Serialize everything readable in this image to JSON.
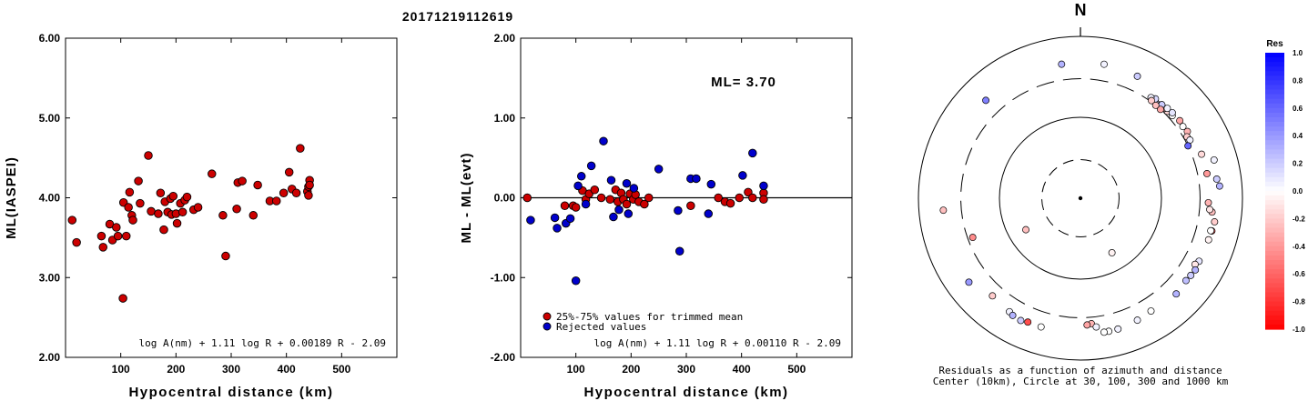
{
  "title": "20171219112619",
  "chart_data": [
    {
      "type": "scatter",
      "name": "ml-vs-distance",
      "xlabel": "Hypocentral distance (km)",
      "ylabel": "ML(IASPEI)",
      "xlim": [
        0,
        600
      ],
      "ylim": [
        2.0,
        6.0
      ],
      "xticks": [
        100,
        200,
        300,
        400,
        500
      ],
      "xtick_labels": [
        "100",
        "200",
        "300",
        "400",
        "500"
      ],
      "yticks": [
        2.0,
        3.0,
        4.0,
        5.0,
        6.0
      ],
      "ytick_labels": [
        "2.00",
        "3.00",
        "4.00",
        "5.00",
        "6.00"
      ],
      "formula": "log A(nm) + 1.11 log R + 0.00189 R - 2.09",
      "series": [
        {
          "color": "#cc0000",
          "points": [
            [
              12,
              3.72
            ],
            [
              20,
              3.44
            ],
            [
              65,
              3.52
            ],
            [
              68,
              3.38
            ],
            [
              80,
              3.67
            ],
            [
              85,
              3.47
            ],
            [
              92,
              3.63
            ],
            [
              95,
              3.52
            ],
            [
              104,
              2.74
            ],
            [
              105,
              3.94
            ],
            [
              110,
              3.52
            ],
            [
              114,
              3.88
            ],
            [
              116,
              4.07
            ],
            [
              120,
              3.78
            ],
            [
              122,
              3.72
            ],
            [
              132,
              4.21
            ],
            [
              135,
              3.93
            ],
            [
              150,
              4.53
            ],
            [
              155,
              3.83
            ],
            [
              168,
              3.8
            ],
            [
              172,
              4.06
            ],
            [
              178,
              3.6
            ],
            [
              180,
              3.95
            ],
            [
              185,
              3.82
            ],
            [
              190,
              3.99
            ],
            [
              192,
              3.79
            ],
            [
              195,
              4.02
            ],
            [
              200,
              3.8
            ],
            [
              202,
              3.68
            ],
            [
              208,
              3.93
            ],
            [
              212,
              3.82
            ],
            [
              216,
              3.97
            ],
            [
              220,
              4.01
            ],
            [
              232,
              3.85
            ],
            [
              240,
              3.88
            ],
            [
              265,
              4.3
            ],
            [
              285,
              3.78
            ],
            [
              290,
              3.27
            ],
            [
              310,
              3.86
            ],
            [
              312,
              4.19
            ],
            [
              320,
              4.21
            ],
            [
              340,
              3.78
            ],
            [
              348,
              4.16
            ],
            [
              370,
              3.96
            ],
            [
              382,
              3.96
            ],
            [
              395,
              4.06
            ],
            [
              405,
              4.32
            ],
            [
              410,
              4.11
            ],
            [
              418,
              4.06
            ],
            [
              425,
              4.62
            ],
            [
              438,
              4.08
            ],
            [
              440,
              4.14
            ],
            [
              440,
              4.03
            ],
            [
              442,
              4.22
            ],
            [
              442,
              4.16
            ]
          ]
        }
      ]
    },
    {
      "type": "scatter",
      "name": "residual-vs-distance",
      "xlabel": "Hypocentral distance (km)",
      "ylabel": "ML - ML(evt)",
      "xlim": [
        0,
        600
      ],
      "ylim": [
        -2.0,
        2.0
      ],
      "xticks": [
        100,
        200,
        300,
        400,
        500
      ],
      "xtick_labels": [
        "100",
        "200",
        "300",
        "400",
        "500"
      ],
      "yticks": [
        -2.0,
        -1.0,
        0.0,
        1.0,
        2.0
      ],
      "ytick_labels": [
        "-2.00",
        "-1.00",
        "0.00",
        "1.00",
        "2.00"
      ],
      "zero_line": 0,
      "annotation": "ML= 3.70",
      "formula": "log A(nm) + 1.11 log R + 0.00110 R - 2.09",
      "legend": [
        {
          "label": "25%-75% values for trimmed mean",
          "color": "#cc0000"
        },
        {
          "label": "Rejected values",
          "color": "#0000cc"
        }
      ],
      "series": [
        {
          "color": "#cc0000",
          "points": [
            [
              12,
              0.0
            ],
            [
              80,
              -0.1
            ],
            [
              95,
              -0.1
            ],
            [
              100,
              -0.12
            ],
            [
              112,
              0.09
            ],
            [
              118,
              -0.02
            ],
            [
              124,
              0.05
            ],
            [
              134,
              0.1
            ],
            [
              146,
              0.0
            ],
            [
              162,
              -0.02
            ],
            [
              172,
              0.1
            ],
            [
              176,
              -0.05
            ],
            [
              182,
              0.06
            ],
            [
              186,
              -0.02
            ],
            [
              192,
              -0.08
            ],
            [
              198,
              0.05
            ],
            [
              204,
              -0.02
            ],
            [
              208,
              0.04
            ],
            [
              214,
              -0.05
            ],
            [
              224,
              -0.08
            ],
            [
              232,
              0.0
            ],
            [
              308,
              -0.1
            ],
            [
              358,
              0.0
            ],
            [
              370,
              -0.05
            ],
            [
              380,
              -0.07
            ],
            [
              396,
              0.0
            ],
            [
              412,
              0.07
            ],
            [
              420,
              0.0
            ],
            [
              440,
              0.06
            ],
            [
              440,
              -0.02
            ]
          ]
        },
        {
          "color": "#0000cc",
          "points": [
            [
              18,
              -0.28
            ],
            [
              62,
              -0.25
            ],
            [
              66,
              -0.38
            ],
            [
              82,
              -0.32
            ],
            [
              90,
              -0.26
            ],
            [
              100,
              -1.04
            ],
            [
              104,
              0.15
            ],
            [
              110,
              0.27
            ],
            [
              118,
              -0.08
            ],
            [
              128,
              0.4
            ],
            [
              150,
              0.71
            ],
            [
              164,
              0.22
            ],
            [
              168,
              -0.24
            ],
            [
              178,
              -0.15
            ],
            [
              192,
              0.18
            ],
            [
              195,
              -0.2
            ],
            [
              205,
              0.12
            ],
            [
              250,
              0.36
            ],
            [
              285,
              -0.16
            ],
            [
              288,
              -0.67
            ],
            [
              308,
              0.24
            ],
            [
              318,
              0.24
            ],
            [
              340,
              -0.2
            ],
            [
              345,
              0.17
            ],
            [
              402,
              0.28
            ],
            [
              420,
              0.56
            ],
            [
              440,
              0.15
            ]
          ]
        }
      ]
    },
    {
      "type": "scatter",
      "name": "residual-azimuth-plot",
      "north_label": "N",
      "caption_line1": "Residuals as a function of azimuth and distance",
      "caption_line2": "Center (10km), Circle at 30, 100, 300 and 1000 km",
      "colorbar": {
        "title": "Res",
        "ticks": [
          1.0,
          0.8,
          0.6,
          0.4,
          0.2,
          0.0,
          -0.2,
          -0.4,
          -0.6,
          -0.8,
          -1.0
        ],
        "tick_labels": [
          "1.0",
          "0.8",
          "0.6",
          "0.4",
          "0.2",
          "0.0",
          "-0.2",
          "-0.4",
          "-0.6",
          "-0.8",
          "-1.0"
        ],
        "color_max": "#0000ff",
        "color_zero": "#ffffff",
        "color_min": "#ff0000"
      },
      "points": [
        {
          "az": 150,
          "dist": 60,
          "res": -0.05
        },
        {
          "az": 240,
          "dist": 60,
          "res": -0.25
        },
        {
          "az": 10,
          "dist": 480,
          "res": 0.05
        },
        {
          "az": 25,
          "dist": 460,
          "res": 0.2
        },
        {
          "az": 352,
          "dist": 470,
          "res": 0.3
        },
        {
          "az": 316,
          "dist": 480,
          "res": 0.5
        },
        {
          "az": 265,
          "dist": 500,
          "res": -0.25
        },
        {
          "az": 250,
          "dist": 260,
          "res": -0.45
        },
        {
          "az": 233,
          "dist": 530,
          "res": 0.4
        },
        {
          "az": 222,
          "dist": 420,
          "res": -0.2
        },
        {
          "az": 212,
          "dist": 450,
          "res": 0.05
        },
        {
          "az": 210,
          "dist": 470,
          "res": 0.3
        },
        {
          "az": 206,
          "dist": 480,
          "res": 0.2
        },
        {
          "az": 203,
          "dist": 460,
          "res": -0.7
        },
        {
          "az": 197,
          "dist": 460,
          "res": 0.0
        },
        {
          "az": 168,
          "dist": 480,
          "res": 0.0
        },
        {
          "az": 164,
          "dist": 480,
          "res": 0.05
        },
        {
          "az": 170,
          "dist": 480,
          "res": 0.0
        },
        {
          "az": 175,
          "dist": 360,
          "res": -0.3
        },
        {
          "az": 177,
          "dist": 370,
          "res": -0.35
        },
        {
          "az": 173,
          "dist": 400,
          "res": 0.05
        },
        {
          "az": 155,
          "dist": 460,
          "res": 0.05
        },
        {
          "az": 148,
          "dist": 440,
          "res": 0.0
        },
        {
          "az": 135,
          "dist": 470,
          "res": 0.3
        },
        {
          "az": 128,
          "dist": 450,
          "res": 0.25
        },
        {
          "az": 125,
          "dist": 460,
          "res": 0.2
        },
        {
          "az": 118,
          "dist": 455,
          "res": 0.1
        },
        {
          "az": 120,
          "dist": 430,
          "res": -0.1
        },
        {
          "az": 122,
          "dist": 470,
          "res": 0.3
        },
        {
          "az": 108,
          "dist": 460,
          "res": -0.05
        },
        {
          "az": 104,
          "dist": 470,
          "res": -0.7
        },
        {
          "az": 104,
          "dist": 455,
          "res": 0.0
        },
        {
          "az": 100,
          "dist": 480,
          "res": -0.2
        },
        {
          "az": 96,
          "dist": 430,
          "res": -0.25
        },
        {
          "az": 95,
          "dist": 400,
          "res": -0.1
        },
        {
          "az": 92,
          "dist": 380,
          "res": -0.3
        },
        {
          "az": 85,
          "dist": 530,
          "res": 0.3
        },
        {
          "az": 82,
          "dist": 500,
          "res": 0.2
        },
        {
          "az": 74,
          "dist": 520,
          "res": 0.05
        },
        {
          "az": 79,
          "dist": 390,
          "res": -0.4
        },
        {
          "az": 70,
          "dist": 390,
          "res": -0.15
        },
        {
          "az": 55,
          "dist": 350,
          "res": 0.0
        },
        {
          "az": 58,
          "dist": 360,
          "res": -0.3
        },
        {
          "az": 60,
          "dist": 330,
          "res": -0.2
        },
        {
          "az": 62,
          "dist": 340,
          "res": 0.05
        },
        {
          "az": 64,
          "dist": 300,
          "res": 0.6
        },
        {
          "az": 52,
          "dist": 360,
          "res": -0.35
        },
        {
          "az": 48,
          "dist": 335,
          "res": 0.0
        },
        {
          "az": 45,
          "dist": 330,
          "res": -0.15
        },
        {
          "az": 43,
          "dist": 330,
          "res": -0.25
        },
        {
          "az": 40,
          "dist": 320,
          "res": -0.3
        },
        {
          "az": 38,
          "dist": 320,
          "res": 0.15
        },
        {
          "az": 44,
          "dist": 350,
          "res": 0.05
        },
        {
          "az": 47,
          "dist": 355,
          "res": 0.1
        },
        {
          "az": 41,
          "dist": 340,
          "res": 0.2
        },
        {
          "az": 37,
          "dist": 345,
          "res": 0.15
        },
        {
          "az": 35,
          "dist": 330,
          "res": 0.05
        },
        {
          "az": 36,
          "dist": 310,
          "res": -0.2
        },
        {
          "az": 42,
          "dist": 300,
          "res": -0.35
        },
        {
          "az": 39,
          "dist": 300,
          "res": -0.25
        }
      ]
    }
  ]
}
